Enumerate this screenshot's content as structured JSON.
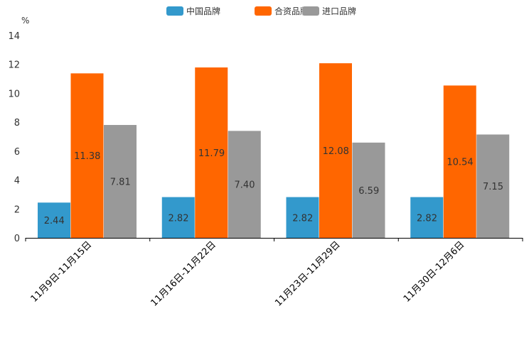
{
  "chart_data": {
    "type": "bar",
    "title": "",
    "xlabel": "",
    "ylabel": "%",
    "ylim": [
      0,
      14
    ],
    "yticks": [
      0,
      2,
      4,
      6,
      8,
      10,
      12,
      14
    ],
    "categories": [
      "11月9日-11月15日",
      "11月16日-11月22日",
      "11月23日-11月29日",
      "11月30日-12月6日"
    ],
    "series": [
      {
        "name": "中国品牌",
        "color": "#3399cc",
        "values": [
          2.44,
          2.82,
          2.82,
          2.82
        ]
      },
      {
        "name": "合资品牌",
        "color": "#ff6600",
        "values": [
          11.38,
          11.79,
          12.08,
          10.54
        ]
      },
      {
        "name": "进口品牌",
        "color": "#999999",
        "values": [
          7.81,
          7.4,
          6.59,
          7.15
        ]
      }
    ],
    "legend_position": "top-center",
    "grid": false
  }
}
